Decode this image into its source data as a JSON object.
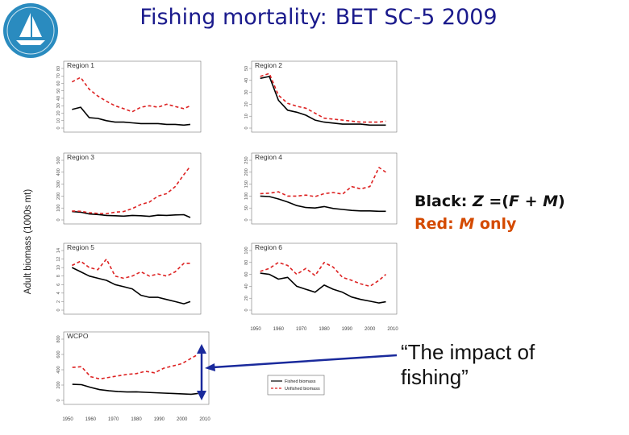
{
  "title": {
    "main": "Fishing mortality:",
    "sub": "BET SC-5 2009"
  },
  "y_axis_label": "Adult biomass (1000s mt)",
  "legend": {
    "entries": [
      {
        "label": "Fished biomass",
        "color": "#000000",
        "style": "solid"
      },
      {
        "label": "Unfished biomass",
        "color": "#dd2222",
        "style": "dashed"
      }
    ]
  },
  "annotation": {
    "black_label": "Black:",
    "black_formula_z": "Z",
    "black_formula_eq": "=(",
    "black_formula_f": "F",
    "black_formula_plus": "+",
    "black_formula_m": "M",
    "black_formula_close": ")",
    "red_label": "Red:",
    "red_formula_m": "M",
    "red_formula_only": "only",
    "impact_text": "“The impact of fishing”"
  },
  "chart_data": [
    {
      "type": "line",
      "panel": "Region 1",
      "ylim": [
        0,
        80
      ],
      "y_ticks": [
        "0",
        "10",
        "20",
        "30",
        "40",
        "50",
        "60",
        "70",
        "80"
      ],
      "x": [
        1952,
        1956,
        1960,
        1964,
        1968,
        1972,
        1976,
        1980,
        1984,
        1988,
        1992,
        1996,
        2000,
        2004,
        2007
      ],
      "series": [
        {
          "name": "Fished biomass",
          "color": "#000000",
          "values": [
            25,
            28,
            14,
            13,
            10,
            8,
            8,
            7,
            6,
            6,
            6,
            5,
            5,
            4,
            5
          ]
        },
        {
          "name": "Unfished biomass",
          "color": "#dd2222",
          "values": [
            62,
            68,
            52,
            43,
            36,
            30,
            26,
            22,
            28,
            30,
            28,
            32,
            29,
            26,
            30
          ]
        }
      ]
    },
    {
      "type": "line",
      "panel": "Region 2",
      "ylim": [
        0,
        60
      ],
      "y_ticks": [
        "0",
        "10",
        "20",
        "30",
        "40",
        "50"
      ],
      "x": [
        1952,
        1956,
        1960,
        1964,
        1968,
        1972,
        1976,
        1980,
        1984,
        1988,
        1992,
        1996,
        2000,
        2004,
        2007
      ],
      "series": [
        {
          "name": "Fished biomass",
          "color": "#000000",
          "values": [
            50,
            52,
            28,
            18,
            16,
            13,
            8,
            6,
            5,
            4,
            4,
            4,
            3,
            3,
            3
          ]
        },
        {
          "name": "Unfished biomass",
          "color": "#dd2222",
          "values": [
            52,
            55,
            33,
            25,
            22,
            20,
            15,
            10,
            9,
            8,
            7,
            6,
            6,
            6,
            7
          ]
        }
      ]
    },
    {
      "type": "line",
      "panel": "Region 3",
      "ylim": [
        0,
        500
      ],
      "y_ticks": [
        "0",
        "100",
        "200",
        "300",
        "400",
        "500"
      ],
      "x": [
        1952,
        1956,
        1960,
        1964,
        1968,
        1972,
        1976,
        1980,
        1984,
        1988,
        1992,
        1996,
        2000,
        2004,
        2007
      ],
      "series": [
        {
          "name": "Fished biomass",
          "color": "#000000",
          "values": [
            70,
            65,
            50,
            45,
            38,
            35,
            32,
            38,
            35,
            30,
            40,
            38,
            42,
            44,
            20
          ]
        },
        {
          "name": "Unfished biomass",
          "color": "#dd2222",
          "values": [
            75,
            72,
            60,
            55,
            52,
            65,
            70,
            95,
            130,
            150,
            200,
            220,
            280,
            380,
            450
          ]
        }
      ]
    },
    {
      "type": "line",
      "panel": "Region 4",
      "ylim": [
        0,
        250
      ],
      "y_ticks": [
        "0",
        "50",
        "100",
        "150",
        "200",
        "250"
      ],
      "x": [
        1952,
        1956,
        1960,
        1964,
        1968,
        1972,
        1976,
        1980,
        1984,
        1988,
        1992,
        1996,
        2000,
        2004,
        2007
      ],
      "series": [
        {
          "name": "Fished biomass",
          "color": "#000000",
          "values": [
            100,
            98,
            88,
            75,
            60,
            52,
            50,
            56,
            48,
            44,
            40,
            38,
            38,
            36,
            36
          ]
        },
        {
          "name": "Unfished biomass",
          "color": "#dd2222",
          "values": [
            110,
            112,
            118,
            100,
            100,
            104,
            98,
            110,
            115,
            108,
            140,
            130,
            140,
            220,
            200
          ]
        }
      ]
    },
    {
      "type": "line",
      "panel": "Region 5",
      "ylim": [
        0,
        14
      ],
      "y_ticks": [
        "0",
        "2",
        "4",
        "6",
        "8",
        "10",
        "12",
        "14"
      ],
      "x": [
        1952,
        1956,
        1960,
        1964,
        1968,
        1972,
        1976,
        1980,
        1984,
        1988,
        1992,
        1996,
        2000,
        2004,
        2007
      ],
      "series": [
        {
          "name": "Fished biomass",
          "color": "#000000",
          "values": [
            10,
            9,
            8,
            7.5,
            7,
            6,
            5.5,
            5,
            3.5,
            3,
            3,
            2.5,
            2,
            1.5,
            2
          ]
        },
        {
          "name": "Unfished biomass",
          "color": "#dd2222",
          "values": [
            10.5,
            11.5,
            10,
            9.5,
            12,
            8,
            7.5,
            8,
            9,
            8,
            8.5,
            8,
            9,
            11,
            11
          ]
        }
      ]
    },
    {
      "type": "line",
      "panel": "Region 6",
      "ylim": [
        0,
        100
      ],
      "y_ticks": [
        "0",
        "20",
        "40",
        "60",
        "80",
        "100"
      ],
      "x": [
        1952,
        1956,
        1960,
        1964,
        1968,
        1972,
        1976,
        1980,
        1984,
        1988,
        1992,
        1996,
        2000,
        2004,
        2007
      ],
      "series": [
        {
          "name": "Fished biomass",
          "color": "#000000",
          "values": [
            62,
            60,
            52,
            55,
            40,
            35,
            30,
            42,
            35,
            30,
            22,
            18,
            15,
            12,
            14
          ]
        },
        {
          "name": "Unfished biomass",
          "color": "#dd2222",
          "values": [
            65,
            70,
            80,
            75,
            60,
            70,
            58,
            80,
            72,
            55,
            50,
            44,
            40,
            50,
            60
          ]
        }
      ]
    },
    {
      "type": "line",
      "panel": "WCPO",
      "ylim": [
        0,
        800
      ],
      "y_ticks": [
        "0",
        "200",
        "400",
        "600",
        "800"
      ],
      "x_ticks": [
        "1950",
        "1960",
        "1970",
        "1980",
        "1990",
        "2000",
        "2010"
      ],
      "xlim": [
        1950,
        2010
      ],
      "x": [
        1952,
        1956,
        1960,
        1964,
        1968,
        1972,
        1976,
        1980,
        1984,
        1988,
        1992,
        1996,
        2000,
        2004,
        2007
      ],
      "series": [
        {
          "name": "Fished biomass",
          "color": "#000000",
          "values": [
            210,
            205,
            170,
            140,
            125,
            115,
            110,
            112,
            105,
            100,
            95,
            90,
            85,
            80,
            90
          ]
        },
        {
          "name": "Unfished biomass",
          "color": "#dd2222",
          "values": [
            430,
            440,
            310,
            280,
            300,
            320,
            340,
            350,
            380,
            360,
            420,
            450,
            480,
            550,
            600
          ]
        }
      ]
    },
    {
      "type": "line",
      "panel": "shared-x",
      "x_ticks": [
        "1950",
        "1960",
        "1970",
        "1980",
        "1990",
        "2000",
        "2010"
      ],
      "xlim": [
        1950,
        2010
      ]
    }
  ]
}
